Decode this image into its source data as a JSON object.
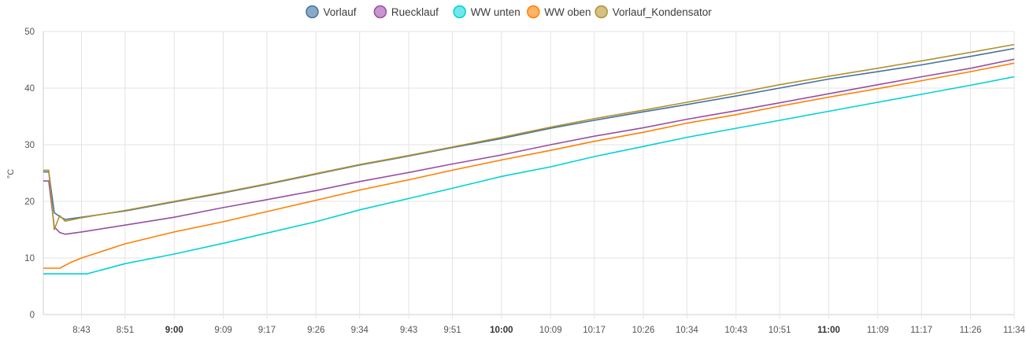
{
  "chart_data": {
    "type": "line",
    "title": "",
    "xlabel": "",
    "ylabel": "°C",
    "ylim": [
      0,
      50
    ],
    "y_ticks": [
      0,
      10,
      20,
      30,
      40,
      50
    ],
    "grid": true,
    "legend_position": "top-center",
    "x_start": "8:36",
    "x_end": "11:34",
    "x_ticks": [
      {
        "label": "8:43",
        "bold": false
      },
      {
        "label": "8:51",
        "bold": false
      },
      {
        "label": "9:00",
        "bold": true
      },
      {
        "label": "9:09",
        "bold": false
      },
      {
        "label": "9:17",
        "bold": false
      },
      {
        "label": "9:26",
        "bold": false
      },
      {
        "label": "9:34",
        "bold": false
      },
      {
        "label": "9:43",
        "bold": false
      },
      {
        "label": "9:51",
        "bold": false
      },
      {
        "label": "10:00",
        "bold": true
      },
      {
        "label": "10:09",
        "bold": false
      },
      {
        "label": "10:17",
        "bold": false
      },
      {
        "label": "10:26",
        "bold": false
      },
      {
        "label": "10:34",
        "bold": false
      },
      {
        "label": "10:43",
        "bold": false
      },
      {
        "label": "10:51",
        "bold": false
      },
      {
        "label": "11:00",
        "bold": true
      },
      {
        "label": "11:09",
        "bold": false
      },
      {
        "label": "11:17",
        "bold": false
      },
      {
        "label": "11:26",
        "bold": false
      },
      {
        "label": "11:34",
        "bold": false
      }
    ],
    "series": [
      {
        "name": "Vorlauf",
        "color": "#44739e",
        "fill": "#8aa9c6",
        "points": [
          [
            "8:36",
            25.2
          ],
          [
            "8:37",
            25.2
          ],
          [
            "8:38",
            18
          ],
          [
            "8:39",
            17.3
          ],
          [
            "8:40",
            16.8
          ],
          [
            "8:43",
            17.2
          ],
          [
            "8:51",
            18.3
          ],
          [
            "9:00",
            19.9
          ],
          [
            "9:09",
            21.5
          ],
          [
            "9:17",
            23.0
          ],
          [
            "9:26",
            24.8
          ],
          [
            "9:34",
            26.4
          ],
          [
            "9:43",
            28.0
          ],
          [
            "9:51",
            29.5
          ],
          [
            "10:00",
            31.1
          ],
          [
            "10:09",
            32.9
          ],
          [
            "10:17",
            34.3
          ],
          [
            "10:26",
            35.8
          ],
          [
            "10:34",
            37.1
          ],
          [
            "10:43",
            38.6
          ],
          [
            "10:51",
            40.0
          ],
          [
            "11:00",
            41.6
          ],
          [
            "11:09",
            42.9
          ],
          [
            "11:17",
            44.1
          ],
          [
            "11:26",
            45.6
          ],
          [
            "11:34",
            47.0
          ]
        ]
      },
      {
        "name": "Ruecklauf",
        "color": "#984ea3",
        "fill": "#c895cf",
        "points": [
          [
            "8:36",
            23.6
          ],
          [
            "8:37",
            23.6
          ],
          [
            "8:38",
            15.5
          ],
          [
            "8:39",
            14.5
          ],
          [
            "8:40",
            14.2
          ],
          [
            "8:43",
            14.6
          ],
          [
            "8:51",
            15.8
          ],
          [
            "9:00",
            17.2
          ],
          [
            "9:09",
            18.9
          ],
          [
            "9:17",
            20.3
          ],
          [
            "9:26",
            21.9
          ],
          [
            "9:34",
            23.5
          ],
          [
            "9:43",
            25.1
          ],
          [
            "9:51",
            26.6
          ],
          [
            "10:00",
            28.2
          ],
          [
            "10:09",
            30.0
          ],
          [
            "10:17",
            31.5
          ],
          [
            "10:26",
            33.0
          ],
          [
            "10:34",
            34.5
          ],
          [
            "10:43",
            36.0
          ],
          [
            "10:51",
            37.4
          ],
          [
            "11:00",
            39.0
          ],
          [
            "11:09",
            40.6
          ],
          [
            "11:17",
            42.0
          ],
          [
            "11:26",
            43.5
          ],
          [
            "11:34",
            45.1
          ]
        ]
      },
      {
        "name": "WW unten",
        "color": "#00d2d5",
        "fill": "#6ee8ea",
        "points": [
          [
            "8:36",
            7.2
          ],
          [
            "8:42",
            7.2
          ],
          [
            "8:44",
            7.2
          ],
          [
            "8:51",
            9.0
          ],
          [
            "9:00",
            10.7
          ],
          [
            "9:09",
            12.6
          ],
          [
            "9:17",
            14.4
          ],
          [
            "9:26",
            16.4
          ],
          [
            "9:34",
            18.5
          ],
          [
            "9:43",
            20.5
          ],
          [
            "9:51",
            22.3
          ],
          [
            "10:00",
            24.4
          ],
          [
            "10:09",
            26.1
          ],
          [
            "10:17",
            27.9
          ],
          [
            "10:26",
            29.7
          ],
          [
            "10:34",
            31.3
          ],
          [
            "10:43",
            32.9
          ],
          [
            "10:51",
            34.3
          ],
          [
            "11:00",
            35.9
          ],
          [
            "11:09",
            37.5
          ],
          [
            "11:17",
            38.9
          ],
          [
            "11:26",
            40.5
          ],
          [
            "11:34",
            42.0
          ]
        ]
      },
      {
        "name": "WW oben",
        "color": "#ff7f00",
        "fill": "#ffb366",
        "points": [
          [
            "8:36",
            8.2
          ],
          [
            "8:39",
            8.2
          ],
          [
            "8:41",
            9.2
          ],
          [
            "8:43",
            10.0
          ],
          [
            "8:51",
            12.5
          ],
          [
            "9:00",
            14.6
          ],
          [
            "9:09",
            16.4
          ],
          [
            "9:17",
            18.2
          ],
          [
            "9:26",
            20.2
          ],
          [
            "9:34",
            22.0
          ],
          [
            "9:43",
            23.8
          ],
          [
            "9:51",
            25.5
          ],
          [
            "10:00",
            27.3
          ],
          [
            "10:09",
            29.0
          ],
          [
            "10:17",
            30.6
          ],
          [
            "10:26",
            32.2
          ],
          [
            "10:34",
            33.8
          ],
          [
            "10:43",
            35.3
          ],
          [
            "10:51",
            36.8
          ],
          [
            "11:00",
            38.4
          ],
          [
            "11:09",
            39.9
          ],
          [
            "11:17",
            41.3
          ],
          [
            "11:26",
            42.9
          ],
          [
            "11:34",
            44.4
          ]
        ]
      },
      {
        "name": "Vorlauf_Kondensator",
        "color": "#b2912f",
        "fill": "#d6c184",
        "points": [
          [
            "8:36",
            25.5
          ],
          [
            "8:37",
            25.5
          ],
          [
            "8:38",
            15
          ],
          [
            "8:39",
            17.5
          ],
          [
            "8:40",
            16.5
          ],
          [
            "8:43",
            17.1
          ],
          [
            "8:51",
            18.4
          ],
          [
            "9:00",
            20.0
          ],
          [
            "9:09",
            21.6
          ],
          [
            "9:17",
            23.1
          ],
          [
            "9:26",
            24.9
          ],
          [
            "9:34",
            26.5
          ],
          [
            "9:43",
            28.1
          ],
          [
            "9:51",
            29.6
          ],
          [
            "10:00",
            31.3
          ],
          [
            "10:09",
            33.1
          ],
          [
            "10:17",
            34.6
          ],
          [
            "10:26",
            36.1
          ],
          [
            "10:34",
            37.5
          ],
          [
            "10:43",
            39.1
          ],
          [
            "10:51",
            40.6
          ],
          [
            "11:00",
            42.1
          ],
          [
            "11:09",
            43.5
          ],
          [
            "11:17",
            44.8
          ],
          [
            "11:26",
            46.3
          ],
          [
            "11:34",
            47.7
          ]
        ]
      }
    ]
  }
}
